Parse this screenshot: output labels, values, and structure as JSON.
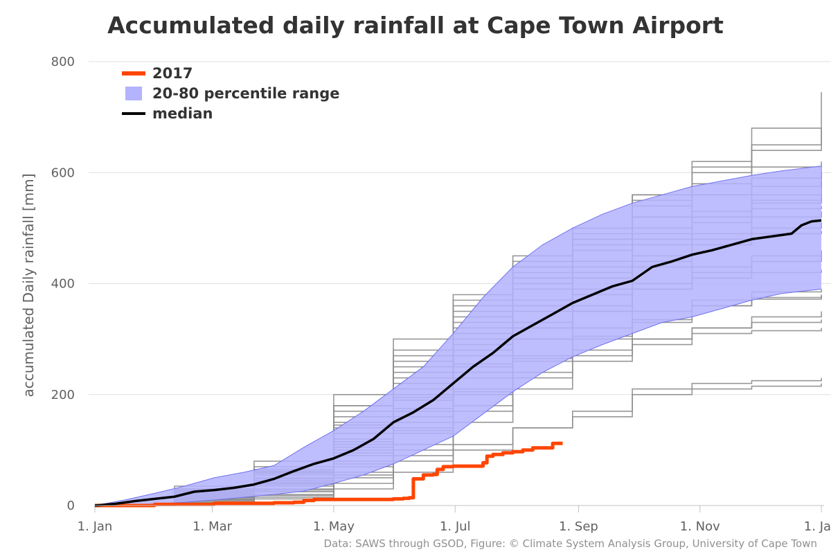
{
  "chart_data": {
    "type": "line",
    "title": "Accumulated daily rainfall at Cape Town Airport",
    "subtitle": "",
    "ylabel": "accumulated Daily rainfall [mm]",
    "xlabel": "",
    "ylim": [
      0,
      800
    ],
    "yticks": [
      0,
      200,
      400,
      600,
      800
    ],
    "xlim_day": [
      0,
      366
    ],
    "xticks": [
      {
        "label": "1. Jan",
        "day": 0
      },
      {
        "label": "1. Mar",
        "day": 59
      },
      {
        "label": "1. May",
        "day": 120
      },
      {
        "label": "1. Jul",
        "day": 181
      },
      {
        "label": "1. Sep",
        "day": 243
      },
      {
        "label": "1. Nov",
        "day": 304
      },
      {
        "label": "1. Jan",
        "day": 365
      }
    ],
    "grid": true,
    "legend_position": "top-left",
    "credit": "Data: SAWS through GSOD, Figure: © Climate System Analysis Group, University of Cape Town",
    "colors": {
      "observed": "#ff4500",
      "band_fill": "#b3b3ff",
      "band_edge": "#7070ee",
      "median": "#000000",
      "history": "#8c8c8c",
      "grid": "#e0e0e0"
    },
    "series": [
      {
        "name": "2017",
        "kind": "line",
        "x": [
          0,
          30,
          60,
          90,
          100,
          105,
          110,
          120,
          150,
          155,
          158,
          160,
          165,
          170,
          172,
          175,
          180,
          190,
          195,
          197,
          200,
          205,
          210,
          215,
          220,
          225,
          230,
          235
        ],
        "y": [
          0,
          2,
          4,
          5,
          6,
          9,
          11,
          11,
          12,
          13,
          14,
          48,
          55,
          56,
          65,
          70,
          71,
          71,
          77,
          89,
          92,
          95,
          97,
          100,
          104,
          104,
          112,
          112
        ]
      },
      {
        "name": "20-80 percentile range",
        "kind": "band",
        "x": [
          0,
          15,
          30,
          45,
          60,
          75,
          90,
          105,
          120,
          135,
          150,
          165,
          180,
          195,
          210,
          225,
          240,
          255,
          270,
          285,
          300,
          315,
          330,
          345,
          365
        ],
        "low": [
          0,
          1,
          3,
          6,
          10,
          15,
          20,
          26,
          40,
          55,
          75,
          100,
          125,
          165,
          205,
          240,
          268,
          290,
          310,
          330,
          340,
          355,
          370,
          382,
          390
        ],
        "high": [
          0,
          10,
          22,
          35,
          50,
          60,
          72,
          105,
          135,
          170,
          210,
          250,
          310,
          375,
          430,
          470,
          500,
          525,
          545,
          560,
          575,
          585,
          595,
          603,
          612
        ]
      },
      {
        "name": "median",
        "kind": "line",
        "x": [
          0,
          10,
          20,
          30,
          40,
          50,
          60,
          70,
          80,
          90,
          100,
          110,
          120,
          130,
          140,
          150,
          160,
          170,
          180,
          190,
          200,
          210,
          220,
          230,
          240,
          250,
          260,
          270,
          280,
          290,
          300,
          310,
          320,
          330,
          340,
          350,
          355,
          360,
          365
        ],
        "y": [
          0,
          3,
          8,
          12,
          16,
          25,
          28,
          32,
          38,
          48,
          62,
          75,
          85,
          100,
          120,
          150,
          168,
          190,
          220,
          250,
          275,
          305,
          325,
          345,
          365,
          380,
          395,
          405,
          430,
          440,
          452,
          460,
          470,
          480,
          485,
          490,
          505,
          512,
          514
        ]
      }
    ],
    "history_years": [
      [
        [
          0,
          0
        ],
        [
          40,
          30
        ],
        [
          80,
          60
        ],
        [
          120,
          180
        ],
        [
          150,
          260
        ],
        [
          180,
          330
        ],
        [
          210,
          400
        ],
        [
          240,
          470
        ],
        [
          270,
          520
        ],
        [
          300,
          560
        ],
        [
          330,
          575
        ],
        [
          365,
          585
        ]
      ],
      [
        [
          0,
          0
        ],
        [
          40,
          15
        ],
        [
          80,
          40
        ],
        [
          120,
          90
        ],
        [
          150,
          150
        ],
        [
          180,
          230
        ],
        [
          210,
          300
        ],
        [
          240,
          350
        ],
        [
          270,
          390
        ],
        [
          300,
          420
        ],
        [
          330,
          440
        ],
        [
          365,
          450
        ]
      ],
      [
        [
          0,
          0
        ],
        [
          40,
          10
        ],
        [
          80,
          25
        ],
        [
          120,
          60
        ],
        [
          150,
          110
        ],
        [
          180,
          180
        ],
        [
          210,
          240
        ],
        [
          240,
          280
        ],
        [
          270,
          300
        ],
        [
          300,
          320
        ],
        [
          330,
          330
        ],
        [
          365,
          335
        ]
      ],
      [
        [
          0,
          0
        ],
        [
          40,
          20
        ],
        [
          80,
          50
        ],
        [
          120,
          140
        ],
        [
          150,
          220
        ],
        [
          180,
          320
        ],
        [
          210,
          420
        ],
        [
          240,
          480
        ],
        [
          270,
          560
        ],
        [
          300,
          620
        ],
        [
          330,
          680
        ],
        [
          365,
          745
        ]
      ],
      [
        [
          0,
          0
        ],
        [
          40,
          25
        ],
        [
          80,
          55
        ],
        [
          120,
          120
        ],
        [
          150,
          200
        ],
        [
          180,
          280
        ],
        [
          210,
          350
        ],
        [
          240,
          420
        ],
        [
          270,
          470
        ],
        [
          300,
          520
        ],
        [
          330,
          545
        ],
        [
          365,
          560
        ]
      ],
      [
        [
          0,
          0
        ],
        [
          40,
          5
        ],
        [
          80,
          20
        ],
        [
          120,
          50
        ],
        [
          150,
          80
        ],
        [
          180,
          110
        ],
        [
          210,
          140
        ],
        [
          240,
          170
        ],
        [
          270,
          210
        ],
        [
          300,
          220
        ],
        [
          330,
          225
        ],
        [
          365,
          230
        ]
      ],
      [
        [
          0,
          0
        ],
        [
          40,
          12
        ],
        [
          80,
          35
        ],
        [
          120,
          100
        ],
        [
          150,
          170
        ],
        [
          180,
          250
        ],
        [
          210,
          320
        ],
        [
          240,
          380
        ],
        [
          270,
          440
        ],
        [
          300,
          480
        ],
        [
          330,
          500
        ],
        [
          365,
          510
        ]
      ],
      [
        [
          0,
          0
        ],
        [
          40,
          30
        ],
        [
          80,
          70
        ],
        [
          120,
          200
        ],
        [
          150,
          300
        ],
        [
          180,
          380
        ],
        [
          210,
          450
        ],
        [
          240,
          500
        ],
        [
          270,
          550
        ],
        [
          300,
          600
        ],
        [
          330,
          640
        ],
        [
          365,
          680
        ]
      ],
      [
        [
          0,
          0
        ],
        [
          40,
          8
        ],
        [
          80,
          25
        ],
        [
          120,
          70
        ],
        [
          150,
          130
        ],
        [
          180,
          200
        ],
        [
          210,
          260
        ],
        [
          240,
          300
        ],
        [
          270,
          330
        ],
        [
          300,
          360
        ],
        [
          330,
          375
        ],
        [
          365,
          380
        ]
      ],
      [
        [
          0,
          0
        ],
        [
          40,
          18
        ],
        [
          80,
          45
        ],
        [
          120,
          110
        ],
        [
          150,
          190
        ],
        [
          180,
          270
        ],
        [
          210,
          330
        ],
        [
          240,
          390
        ],
        [
          270,
          430
        ],
        [
          300,
          470
        ],
        [
          330,
          490
        ],
        [
          365,
          495
        ]
      ],
      [
        [
          0,
          0
        ],
        [
          40,
          22
        ],
        [
          80,
          60
        ],
        [
          120,
          150
        ],
        [
          150,
          240
        ],
        [
          180,
          340
        ],
        [
          210,
          410
        ],
        [
          240,
          460
        ],
        [
          270,
          500
        ],
        [
          300,
          530
        ],
        [
          330,
          550
        ],
        [
          365,
          555
        ]
      ],
      [
        [
          0,
          0
        ],
        [
          40,
          5
        ],
        [
          80,
          15
        ],
        [
          120,
          40
        ],
        [
          150,
          90
        ],
        [
          180,
          150
        ],
        [
          210,
          210
        ],
        [
          240,
          260
        ],
        [
          270,
          290
        ],
        [
          300,
          320
        ],
        [
          330,
          340
        ],
        [
          365,
          350
        ]
      ],
      [
        [
          0,
          0
        ],
        [
          40,
          35
        ],
        [
          80,
          80
        ],
        [
          120,
          180
        ],
        [
          150,
          280
        ],
        [
          180,
          370
        ],
        [
          210,
          440
        ],
        [
          240,
          500
        ],
        [
          270,
          560
        ],
        [
          300,
          610
        ],
        [
          330,
          650
        ],
        [
          365,
          680
        ]
      ],
      [
        [
          0,
          0
        ],
        [
          40,
          14
        ],
        [
          80,
          40
        ],
        [
          120,
          95
        ],
        [
          150,
          160
        ],
        [
          180,
          240
        ],
        [
          210,
          300
        ],
        [
          240,
          350
        ],
        [
          270,
          390
        ],
        [
          300,
          410
        ],
        [
          330,
          420
        ],
        [
          365,
          425
        ]
      ],
      [
        [
          0,
          0
        ],
        [
          40,
          10
        ],
        [
          80,
          30
        ],
        [
          120,
          80
        ],
        [
          150,
          140
        ],
        [
          180,
          210
        ],
        [
          210,
          270
        ],
        [
          240,
          320
        ],
        [
          270,
          350
        ],
        [
          300,
          370
        ],
        [
          330,
          385
        ],
        [
          365,
          390
        ]
      ],
      [
        [
          0,
          0
        ],
        [
          40,
          28
        ],
        [
          80,
          65
        ],
        [
          120,
          160
        ],
        [
          150,
          250
        ],
        [
          180,
          350
        ],
        [
          210,
          430
        ],
        [
          240,
          490
        ],
        [
          270,
          540
        ],
        [
          300,
          580
        ],
        [
          330,
          610
        ],
        [
          365,
          620
        ]
      ],
      [
        [
          0,
          0
        ],
        [
          40,
          16
        ],
        [
          80,
          42
        ],
        [
          120,
          115
        ],
        [
          150,
          195
        ],
        [
          180,
          290
        ],
        [
          210,
          360
        ],
        [
          240,
          410
        ],
        [
          270,
          450
        ],
        [
          300,
          490
        ],
        [
          330,
          520
        ],
        [
          365,
          530
        ]
      ],
      [
        [
          0,
          0
        ],
        [
          40,
          6
        ],
        [
          80,
          18
        ],
        [
          120,
          55
        ],
        [
          150,
          100
        ],
        [
          180,
          170
        ],
        [
          210,
          230
        ],
        [
          240,
          270
        ],
        [
          270,
          300
        ],
        [
          300,
          310
        ],
        [
          330,
          315
        ],
        [
          365,
          320
        ]
      ],
      [
        [
          0,
          0
        ],
        [
          40,
          20
        ],
        [
          80,
          48
        ],
        [
          120,
          130
        ],
        [
          150,
          210
        ],
        [
          180,
          300
        ],
        [
          210,
          370
        ],
        [
          240,
          430
        ],
        [
          270,
          480
        ],
        [
          300,
          510
        ],
        [
          330,
          535
        ],
        [
          365,
          540
        ]
      ],
      [
        [
          0,
          0
        ],
        [
          40,
          24
        ],
        [
          80,
          58
        ],
        [
          120,
          145
        ],
        [
          150,
          230
        ],
        [
          180,
          310
        ],
        [
          210,
          390
        ],
        [
          240,
          440
        ],
        [
          270,
          490
        ],
        [
          300,
          520
        ],
        [
          330,
          560
        ],
        [
          365,
          600
        ]
      ],
      [
        [
          0,
          0
        ],
        [
          40,
          4
        ],
        [
          80,
          12
        ],
        [
          120,
          30
        ],
        [
          150,
          60
        ],
        [
          180,
          100
        ],
        [
          210,
          140
        ],
        [
          240,
          160
        ],
        [
          270,
          200
        ],
        [
          300,
          210
        ],
        [
          330,
          215
        ],
        [
          365,
          220
        ]
      ],
      [
        [
          0,
          0
        ],
        [
          40,
          15
        ],
        [
          80,
          38
        ],
        [
          120,
          105
        ],
        [
          150,
          175
        ],
        [
          180,
          255
        ],
        [
          210,
          320
        ],
        [
          240,
          360
        ],
        [
          270,
          400
        ],
        [
          300,
          430
        ],
        [
          330,
          450
        ],
        [
          365,
          460
        ]
      ],
      [
        [
          0,
          0
        ],
        [
          40,
          26
        ],
        [
          80,
          62
        ],
        [
          120,
          170
        ],
        [
          150,
          270
        ],
        [
          180,
          360
        ],
        [
          210,
          430
        ],
        [
          240,
          480
        ],
        [
          270,
          520
        ],
        [
          300,
          560
        ],
        [
          330,
          590
        ],
        [
          365,
          610
        ]
      ],
      [
        [
          0,
          0
        ],
        [
          40,
          11
        ],
        [
          80,
          28
        ],
        [
          120,
          75
        ],
        [
          150,
          135
        ],
        [
          180,
          205
        ],
        [
          210,
          265
        ],
        [
          240,
          305
        ],
        [
          270,
          335
        ],
        [
          300,
          360
        ],
        [
          330,
          372
        ],
        [
          365,
          378
        ]
      ]
    ]
  }
}
